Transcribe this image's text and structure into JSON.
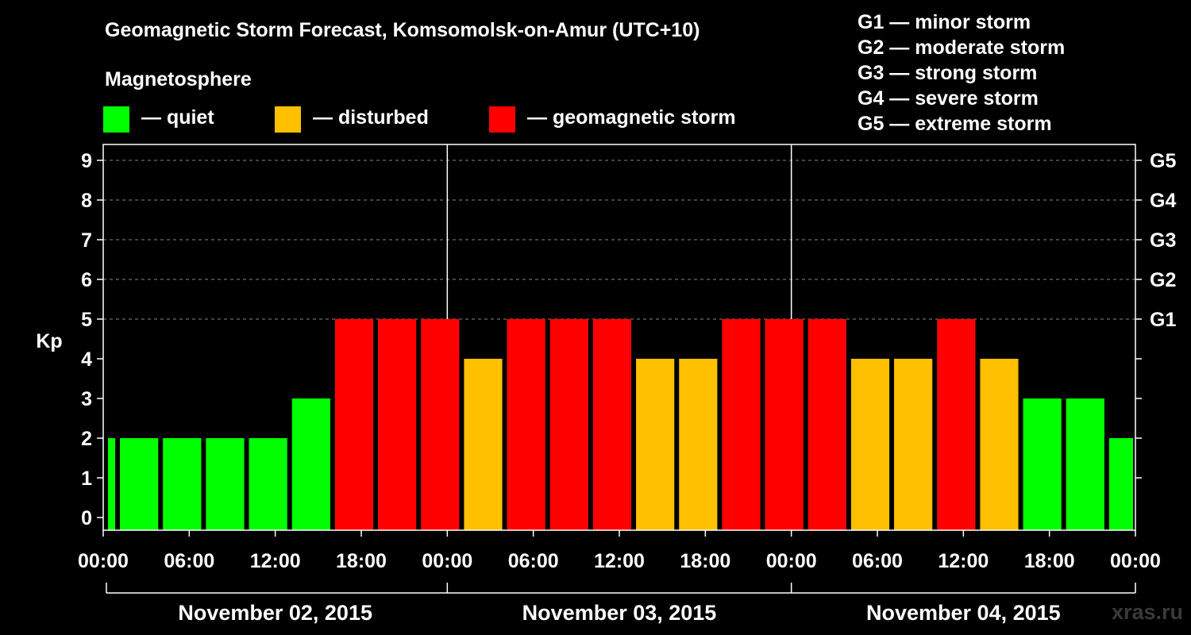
{
  "header": {
    "title": "Geomagnetic Storm Forecast, Komsomolsk-on-Amur (UTC+10)",
    "section": "Magnetosphere",
    "legend": [
      {
        "label": "— quiet",
        "color": "#00ff00"
      },
      {
        "label": "— disturbed",
        "color": "#ffc000"
      },
      {
        "label": "— geomagnetic storm",
        "color": "#ff0000"
      }
    ],
    "g_scale": [
      "G1 — minor storm",
      "G2 — moderate storm",
      "G3 — strong storm",
      "G4 — severe storm",
      "G5 — extreme storm"
    ]
  },
  "watermark": "xras.ru",
  "chart_data": {
    "type": "bar",
    "ylabel": "Kp",
    "ylim": [
      0,
      9
    ],
    "y_ticks": [
      0,
      1,
      2,
      3,
      4,
      5,
      6,
      7,
      8,
      9
    ],
    "right_ticks": [
      {
        "kp": 5,
        "label": "G1"
      },
      {
        "kp": 6,
        "label": "G2"
      },
      {
        "kp": 7,
        "label": "G3"
      },
      {
        "kp": 8,
        "label": "G4"
      },
      {
        "kp": 9,
        "label": "G5"
      }
    ],
    "x_tick_labels": [
      "00:00",
      "06:00",
      "12:00",
      "18:00",
      "00:00",
      "06:00",
      "12:00",
      "18:00",
      "00:00",
      "06:00",
      "12:00",
      "18:00",
      "00:00"
    ],
    "x_tick_hours": [
      0,
      6,
      12,
      18,
      24,
      30,
      36,
      42,
      48,
      54,
      60,
      66,
      72
    ],
    "days": [
      "November 02, 2015",
      "November 03, 2015",
      "November 04, 2015"
    ],
    "bar_start_hours": [
      0,
      1,
      4,
      7,
      10,
      13,
      16,
      19,
      22,
      25,
      28,
      31,
      34,
      37,
      40,
      43,
      46,
      49,
      52,
      55,
      58,
      61,
      64,
      67,
      70
    ],
    "bar_end_hours": [
      1,
      4,
      7,
      10,
      13,
      16,
      19,
      22,
      25,
      28,
      31,
      34,
      37,
      40,
      43,
      46,
      49,
      52,
      55,
      58,
      61,
      64,
      67,
      70,
      72
    ],
    "values": [
      2,
      2,
      2,
      2,
      2,
      3,
      5,
      5,
      5,
      4,
      5,
      5,
      5,
      4,
      4,
      5,
      5,
      5,
      4,
      4,
      5,
      4,
      3,
      3,
      2
    ],
    "colors": {
      "quiet": "#00ff00",
      "disturbed": "#ffc000",
      "storm": "#ff0000"
    }
  }
}
